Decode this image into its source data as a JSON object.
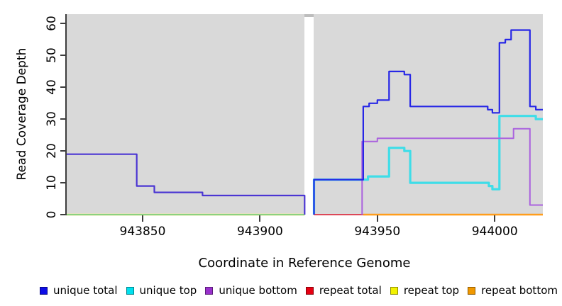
{
  "figure": {
    "x_axis_title": "Coordinate in Reference Genome",
    "y_axis_title": "Read Coverage Depth",
    "page_background": "#ffffff",
    "plot_background": "#d9d9d9",
    "axis_color": "#3d3d3d"
  },
  "legend": {
    "items": [
      {
        "label": "unique total",
        "color": "#0d0de6"
      },
      {
        "label": "unique top",
        "color": "#00e0ee"
      },
      {
        "label": "unique bottom",
        "color": "#9930cc"
      },
      {
        "label": "repeat total",
        "color": "#e60012"
      },
      {
        "label": "repeat top",
        "color": "#f2f200"
      },
      {
        "label": "repeat bottom",
        "color": "#f09800"
      }
    ]
  },
  "chart_data": {
    "type": "line",
    "subtype": "step-coverage-plot",
    "xlabel": "Coordinate in Reference Genome",
    "ylabel": "Read Coverage Depth",
    "xlim": [
      943817.5,
      944020.5
    ],
    "ylim": [
      0,
      63
    ],
    "grid": false,
    "legend_position": "bottom",
    "x_ticks": [
      {
        "value": 943850,
        "label": "943850"
      },
      {
        "value": 943900,
        "label": "943900"
      },
      {
        "value": 943950,
        "label": "943950"
      },
      {
        "value": 944000,
        "label": "944000"
      }
    ],
    "y_ticks": [
      {
        "value": 0,
        "label": "0"
      },
      {
        "value": 10,
        "label": "10"
      },
      {
        "value": 20,
        "label": "20"
      },
      {
        "value": 30,
        "label": "30"
      },
      {
        "value": 40,
        "label": "40"
      },
      {
        "value": 50,
        "label": "50"
      },
      {
        "value": 60,
        "label": "60"
      }
    ],
    "gap": {
      "from": 943919,
      "to": 943923,
      "note": "white no-data band splitting the plot"
    },
    "series": [
      {
        "name": "repeat top",
        "legend_color": "#f2f200",
        "segments": [
          {
            "color": "#efe9a8",
            "width": 3,
            "points": [
              [
                943817.5,
                0
              ],
              [
                943919,
                0
              ]
            ],
            "note": "repeat top at depth 0 across left block; pale yellow fringe under green overlap line"
          }
        ]
      },
      {
        "name": "unique top",
        "legend_color": "#00e0ee",
        "segments": [
          {
            "color": "#7bcf7b",
            "width": 1.8,
            "points": [
              [
                943817.5,
                0
              ],
              [
                943919,
                0
              ]
            ],
            "note": "unique top at depth 0 across left block; overlaps repeat top and renders green"
          },
          {
            "color": "#3fdde8",
            "width": 3.2,
            "points": [
              [
                943923,
                0
              ],
              [
                943923,
                11
              ],
              [
                943946,
                12
              ],
              [
                943955,
                21
              ],
              [
                943961.5,
                20
              ],
              [
                943964,
                10
              ],
              [
                943997.5,
                9
              ],
              [
                943999,
                8
              ],
              [
                944002,
                31
              ],
              [
                944017.5,
                30
              ],
              [
                944020.5,
                30
              ]
            ]
          }
        ]
      },
      {
        "name": "repeat total",
        "legend_color": "#e60012",
        "segments": [
          {
            "color": "#dc4858",
            "width": 2,
            "points": [
              [
                943923,
                0
              ],
              [
                943944,
                0
              ]
            ]
          }
        ]
      },
      {
        "name": "repeat bottom",
        "legend_color": "#f09800",
        "segments": [
          {
            "color": "#ff9d1c",
            "width": 2.4,
            "points": [
              [
                943944,
                0
              ],
              [
                944020.5,
                0
              ]
            ]
          }
        ]
      },
      {
        "name": "unique bottom",
        "legend_color": "#9930cc",
        "segments": [
          {
            "color": "#aa62de",
            "width": 2,
            "points": [
              [
                943943.5,
                0
              ],
              [
                943943.5,
                23
              ],
              [
                943950,
                24
              ],
              [
                944008,
                27
              ],
              [
                944015,
                3
              ],
              [
                944020.5,
                3
              ]
            ]
          }
        ]
      },
      {
        "name": "unique total",
        "legend_color": "#0d0de6",
        "segments": [
          {
            "color": "#4b36d3",
            "width": 2.2,
            "points": [
              [
                943817.5,
                19
              ],
              [
                943847.5,
                9
              ],
              [
                943855,
                7
              ],
              [
                943875.5,
                6
              ],
              [
                943919,
                0
              ]
            ]
          },
          {
            "color": "#2727e6",
            "width": 2.2,
            "points": [
              [
                943923,
                0
              ],
              [
                943923,
                11
              ],
              [
                943944,
                34
              ],
              [
                943946.5,
                35
              ],
              [
                943950,
                36
              ],
              [
                943955,
                45
              ],
              [
                943961.5,
                44
              ],
              [
                943964,
                34
              ],
              [
                943997,
                33
              ],
              [
                943999,
                32
              ],
              [
                944002,
                54
              ],
              [
                944004.5,
                55
              ],
              [
                944007,
                58
              ],
              [
                944015,
                34
              ],
              [
                944017.5,
                33
              ],
              [
                944020.5,
                33
              ]
            ]
          }
        ]
      }
    ]
  }
}
